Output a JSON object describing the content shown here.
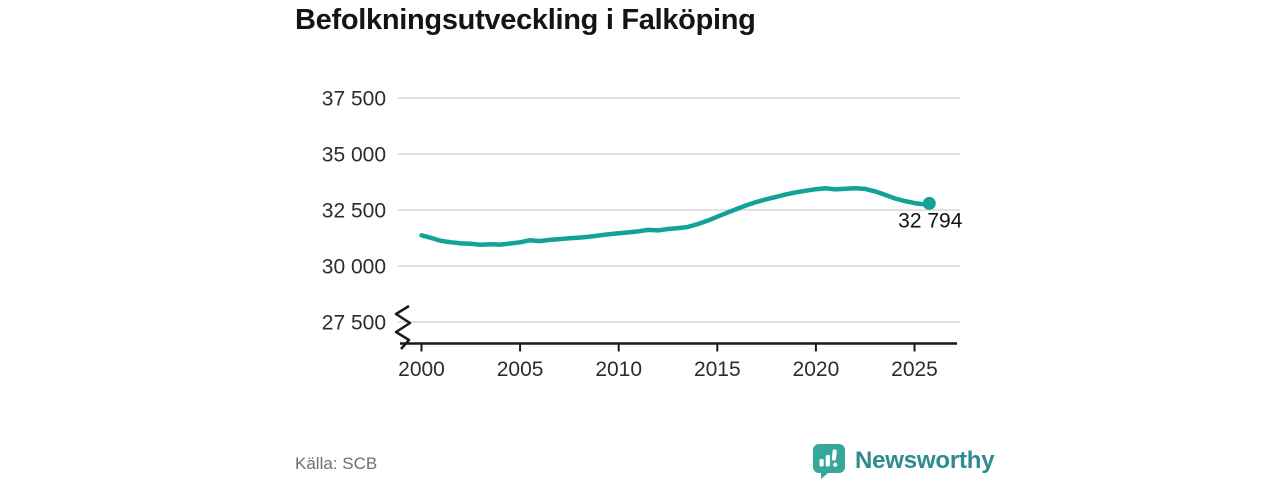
{
  "title": "Befolkningsutveckling i Falköping",
  "footer": {
    "source": "Källa: SCB",
    "brand": "Newsworthy"
  },
  "colors": {
    "line": "#12a296",
    "grid": "#e2e2e2",
    "axis": "#1a1a1a",
    "tick_text": "#2d2d2d",
    "muted_text": "#6f6f6f",
    "brand_icon": "#35a89b",
    "brand_text": "#2e8c90"
  },
  "chart_data": {
    "type": "line",
    "title": "Befolkningsutveckling i Falköping",
    "xlabel": "",
    "ylabel": "",
    "legend": "none",
    "grid": "horizontal",
    "axis_break": true,
    "ylim": [
      27500,
      37500
    ],
    "xlim": [
      1998.8,
      2027.2
    ],
    "xticks": [
      2000,
      2005,
      2010,
      2015,
      2020,
      2025
    ],
    "yticks": [
      27500,
      30000,
      32500,
      35000,
      37500
    ],
    "ytick_labels": [
      "27 500",
      "30 000",
      "32 500",
      "35 000",
      "37 500"
    ],
    "end_label": "32 794",
    "end_value": 32794,
    "x": [
      2000,
      2000.5,
      2001,
      2001.5,
      2002,
      2002.5,
      2003,
      2003.5,
      2004,
      2004.5,
      2005,
      2005.5,
      2006,
      2006.5,
      2007,
      2007.5,
      2008,
      2008.5,
      2009,
      2009.5,
      2010,
      2010.5,
      2011,
      2011.5,
      2012,
      2012.5,
      2013,
      2013.5,
      2014,
      2014.5,
      2015,
      2015.5,
      2016,
      2016.5,
      2017,
      2017.5,
      2018,
      2018.5,
      2019,
      2019.5,
      2020,
      2020.5,
      2021,
      2021.5,
      2022,
      2022.5,
      2023,
      2023.5,
      2024,
      2024.5,
      2025,
      2025.5,
      2025.75
    ],
    "values": [
      31370,
      31250,
      31120,
      31060,
      31010,
      30990,
      30950,
      30975,
      30955,
      31005,
      31060,
      31150,
      31110,
      31165,
      31200,
      31240,
      31270,
      31310,
      31360,
      31420,
      31460,
      31500,
      31550,
      31610,
      31590,
      31650,
      31690,
      31740,
      31870,
      32020,
      32200,
      32380,
      32550,
      32720,
      32860,
      32980,
      33090,
      33200,
      33290,
      33360,
      33430,
      33470,
      33420,
      33450,
      33470,
      33440,
      33330,
      33180,
      33020,
      32900,
      32810,
      32750,
      32794
    ]
  }
}
